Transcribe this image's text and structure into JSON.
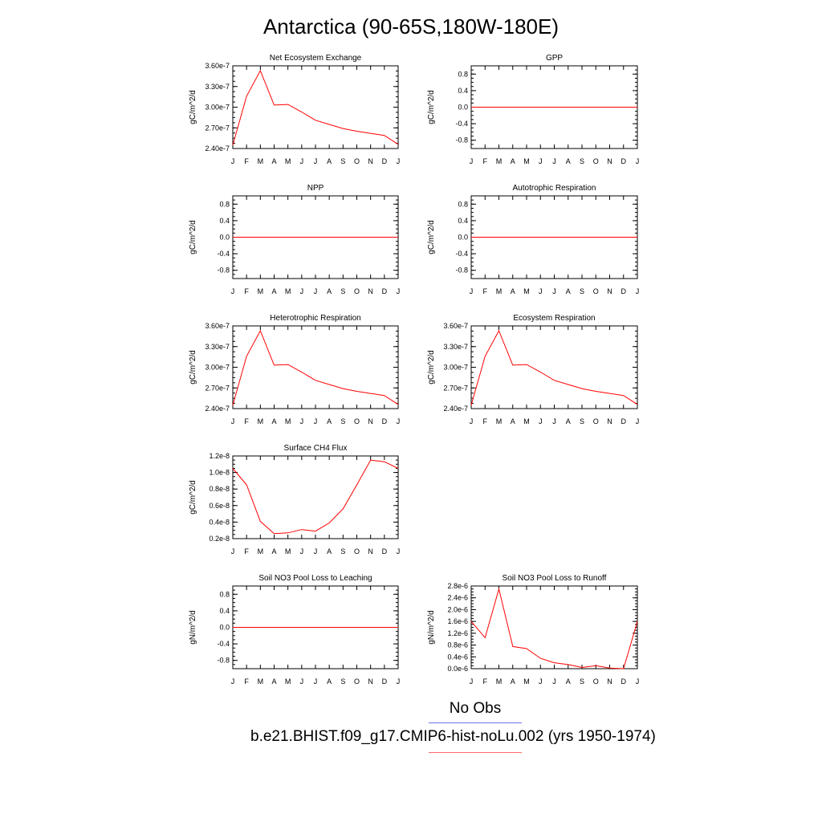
{
  "page_title": "Antarctica (90-65S,180W-180E)",
  "legend": {
    "items": [
      {
        "label": "No Obs",
        "color": "#6b73e6"
      },
      {
        "label": "b.e21.BHIST.f09_g17.CMIP6-hist-noLu.002 (yrs 1950-1974)",
        "color": "#ff6a6a"
      }
    ]
  },
  "series_color": "#ff0000",
  "chart_data": [
    {
      "type": "line",
      "title": "Net Ecosystem Exchange",
      "ylabel": "gC/m^2/d",
      "x": [
        "J",
        "F",
        "M",
        "A",
        "M",
        "J",
        "J",
        "A",
        "S",
        "O",
        "N",
        "D",
        "J"
      ],
      "values": [
        2.45e-07,
        3.16e-07,
        3.53e-07,
        3.03e-07,
        3.04e-07,
        2.93e-07,
        2.81e-07,
        2.75e-07,
        2.69e-07,
        2.65e-07,
        2.62e-07,
        2.59e-07,
        2.46e-07
      ],
      "ylim": [
        2.4e-07,
        3.6e-07
      ],
      "yticks": [
        2.4e-07,
        2.7e-07,
        3e-07,
        3.3e-07,
        3.6e-07
      ],
      "ytick_labels": [
        "2.40e-7",
        "2.70e-7",
        "3.00e-7",
        "3.30e-7",
        "3.60e-7"
      ]
    },
    {
      "type": "line",
      "title": "GPP",
      "ylabel": "gC/m^2/d",
      "x": [
        "J",
        "F",
        "M",
        "A",
        "M",
        "J",
        "J",
        "A",
        "S",
        "O",
        "N",
        "D",
        "J"
      ],
      "values": [
        0,
        0,
        0,
        0,
        0,
        0,
        0,
        0,
        0,
        0,
        0,
        0,
        0
      ],
      "ylim": [
        -1,
        1
      ],
      "yticks": [
        -0.8,
        -0.4,
        0.0,
        0.4,
        0.8
      ],
      "ytick_labels": [
        "-0.8",
        "-0.4",
        "0.0",
        "0.4",
        "0.8"
      ]
    },
    {
      "type": "line",
      "title": "NPP",
      "ylabel": "gC/m^2/d",
      "x": [
        "J",
        "F",
        "M",
        "A",
        "M",
        "J",
        "J",
        "A",
        "S",
        "O",
        "N",
        "D",
        "J"
      ],
      "values": [
        0,
        0,
        0,
        0,
        0,
        0,
        0,
        0,
        0,
        0,
        0,
        0,
        0
      ],
      "ylim": [
        -1,
        1
      ],
      "yticks": [
        -0.8,
        -0.4,
        0.0,
        0.4,
        0.8
      ],
      "ytick_labels": [
        "-0.8",
        "-0.4",
        "0.0",
        "0.4",
        "0.8"
      ]
    },
    {
      "type": "line",
      "title": "Autotrophic Respiration",
      "ylabel": "gC/m^2/d",
      "x": [
        "J",
        "F",
        "M",
        "A",
        "M",
        "J",
        "J",
        "A",
        "S",
        "O",
        "N",
        "D",
        "J"
      ],
      "values": [
        0,
        0,
        0,
        0,
        0,
        0,
        0,
        0,
        0,
        0,
        0,
        0,
        0
      ],
      "ylim": [
        -1,
        1
      ],
      "yticks": [
        -0.8,
        -0.4,
        0.0,
        0.4,
        0.8
      ],
      "ytick_labels": [
        "-0.8",
        "-0.4",
        "0.0",
        "0.4",
        "0.8"
      ]
    },
    {
      "type": "line",
      "title": "Heterotrophic Respiration",
      "ylabel": "gC/m^2/d",
      "x": [
        "J",
        "F",
        "M",
        "A",
        "M",
        "J",
        "J",
        "A",
        "S",
        "O",
        "N",
        "D",
        "J"
      ],
      "values": [
        2.45e-07,
        3.16e-07,
        3.53e-07,
        3.03e-07,
        3.04e-07,
        2.93e-07,
        2.81e-07,
        2.75e-07,
        2.69e-07,
        2.65e-07,
        2.62e-07,
        2.59e-07,
        2.46e-07
      ],
      "ylim": [
        2.4e-07,
        3.6e-07
      ],
      "yticks": [
        2.4e-07,
        2.7e-07,
        3e-07,
        3.3e-07,
        3.6e-07
      ],
      "ytick_labels": [
        "2.40e-7",
        "2.70e-7",
        "3.00e-7",
        "3.30e-7",
        "3.60e-7"
      ]
    },
    {
      "type": "line",
      "title": "Ecosystem Respiration",
      "ylabel": "gC/m^2/d",
      "x": [
        "J",
        "F",
        "M",
        "A",
        "M",
        "J",
        "J",
        "A",
        "S",
        "O",
        "N",
        "D",
        "J"
      ],
      "values": [
        2.45e-07,
        3.16e-07,
        3.53e-07,
        3.03e-07,
        3.04e-07,
        2.93e-07,
        2.81e-07,
        2.75e-07,
        2.69e-07,
        2.65e-07,
        2.62e-07,
        2.59e-07,
        2.46e-07
      ],
      "ylim": [
        2.4e-07,
        3.6e-07
      ],
      "yticks": [
        2.4e-07,
        2.7e-07,
        3e-07,
        3.3e-07,
        3.6e-07
      ],
      "ytick_labels": [
        "2.40e-7",
        "2.70e-7",
        "3.00e-7",
        "3.30e-7",
        "3.60e-7"
      ]
    },
    {
      "type": "line",
      "title": "Surface CH4 Flux",
      "ylabel": "gC/m^2/d",
      "x": [
        "J",
        "F",
        "M",
        "A",
        "M",
        "J",
        "J",
        "A",
        "S",
        "O",
        "N",
        "D",
        "J"
      ],
      "values": [
        1.05e-08,
        8.5e-09,
        4.1e-09,
        2.6e-09,
        2.7e-09,
        3.1e-09,
        2.9e-09,
        3.9e-09,
        5.6e-09,
        8.5e-09,
        1.15e-08,
        1.13e-08,
        1.05e-08
      ],
      "ylim": [
        2e-09,
        1.2e-08
      ],
      "yticks": [
        2e-09,
        4e-09,
        6e-09,
        8e-09,
        1e-08,
        1.2e-08
      ],
      "ytick_labels": [
        "0.2e-8",
        "0.4e-8",
        "0.6e-8",
        "0.8e-8",
        "1.0e-8",
        "1.2e-8"
      ]
    },
    {
      "type": "line",
      "title": "Soil NO3 Pool Loss to Leaching",
      "ylabel": "gN/m^2/d",
      "x": [
        "J",
        "F",
        "M",
        "A",
        "M",
        "J",
        "J",
        "A",
        "S",
        "O",
        "N",
        "D",
        "J"
      ],
      "values": [
        0,
        0,
        0,
        0,
        0,
        0,
        0,
        0,
        0,
        0,
        0,
        0,
        0
      ],
      "ylim": [
        -1,
        1
      ],
      "yticks": [
        -0.8,
        -0.4,
        0.0,
        0.4,
        0.8
      ],
      "ytick_labels": [
        "-0.8",
        "-0.4",
        "0.0",
        "0.4",
        "0.8"
      ]
    },
    {
      "type": "line",
      "title": "Soil NO3 Pool Loss to Runoff",
      "ylabel": "gN/m^2/d",
      "x": [
        "J",
        "F",
        "M",
        "A",
        "M",
        "J",
        "J",
        "A",
        "S",
        "O",
        "N",
        "D",
        "J"
      ],
      "values": [
        1.6e-06,
        1.05e-06,
        2.7e-06,
        7.5e-07,
        6.8e-07,
        3.5e-07,
        2e-07,
        1.4e-07,
        4e-08,
        1e-07,
        2e-08,
        0.0,
        1.6e-06
      ],
      "ylim": [
        0,
        2.8e-06
      ],
      "yticks": [
        0,
        4e-07,
        8e-07,
        1.2e-06,
        1.6e-06,
        2e-06,
        2.4e-06,
        2.8e-06
      ],
      "ytick_labels": [
        "0.0e-6",
        "0.4e-6",
        "0.8e-6",
        "1.2e-6",
        "1.6e-6",
        "2.0e-6",
        "2.4e-6",
        "2.8e-6"
      ]
    }
  ]
}
